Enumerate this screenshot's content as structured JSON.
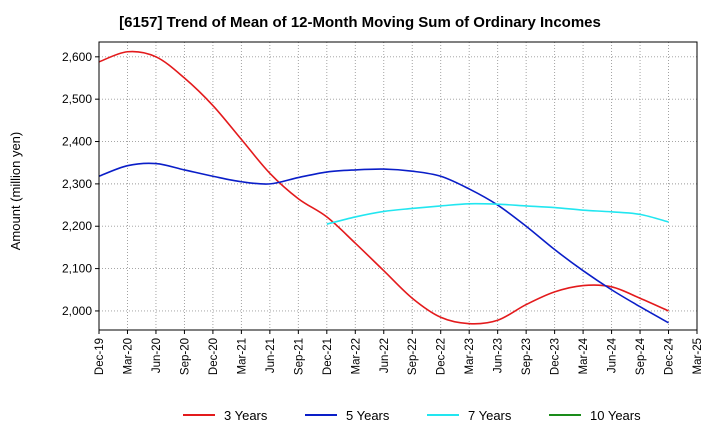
{
  "chart_data": {
    "type": "line",
    "title": "[6157]  Trend of Mean of 12-Month Moving Sum of Ordinary Incomes",
    "xlabel": "",
    "ylabel": "Amount (million yen)",
    "ylim": [
      1955,
      2635
    ],
    "yticks": [
      2000,
      2100,
      2200,
      2300,
      2400,
      2500,
      2600
    ],
    "ytick_labels": [
      "2,000",
      "2,100",
      "2,200",
      "2,300",
      "2,400",
      "2,500",
      "2,600"
    ],
    "x_tick_labels": [
      "Dec-19",
      "Mar-20",
      "Jun-20",
      "Sep-20",
      "Dec-20",
      "Mar-21",
      "Jun-21",
      "Sep-21",
      "Dec-21",
      "Mar-22",
      "Jun-22",
      "Sep-22",
      "Dec-22",
      "Mar-23",
      "Jun-23",
      "Sep-23",
      "Dec-23",
      "Mar-24",
      "Jun-24",
      "Sep-24",
      "Dec-24",
      "Mar-25"
    ],
    "grid": true,
    "legend_position": "bottom",
    "series": [
      {
        "name": "3 Years",
        "color": "#e31a1c",
        "x": [
          0,
          1,
          2,
          3,
          4,
          5,
          6,
          7,
          8,
          9,
          10,
          11,
          12,
          13,
          14,
          15,
          16,
          17,
          18,
          19,
          20
        ],
        "values": [
          2588,
          2612,
          2600,
          2550,
          2485,
          2405,
          2325,
          2265,
          2222,
          2160,
          2095,
          2030,
          1985,
          1970,
          1978,
          2015,
          2045,
          2060,
          2057,
          2030,
          2000
        ]
      },
      {
        "name": "5 Years",
        "color": "#0a1ec8",
        "x": [
          0,
          1,
          2,
          3,
          4,
          5,
          6,
          7,
          8,
          9,
          10,
          11,
          12,
          13,
          14,
          15,
          16,
          17,
          18,
          19,
          20
        ],
        "values": [
          2318,
          2343,
          2348,
          2333,
          2318,
          2305,
          2300,
          2315,
          2328,
          2333,
          2335,
          2330,
          2318,
          2288,
          2250,
          2200,
          2145,
          2095,
          2050,
          2010,
          1972
        ]
      },
      {
        "name": "7 Years",
        "color": "#22e6f0",
        "x": [
          8,
          9,
          10,
          11,
          12,
          13,
          14,
          15,
          16,
          17,
          18,
          19,
          20
        ],
        "values": [
          2205,
          2222,
          2235,
          2242,
          2248,
          2253,
          2252,
          2248,
          2244,
          2238,
          2234,
          2228,
          2210
        ]
      },
      {
        "name": "10 Years",
        "color": "#1a8c1a",
        "x": [],
        "values": []
      }
    ]
  }
}
